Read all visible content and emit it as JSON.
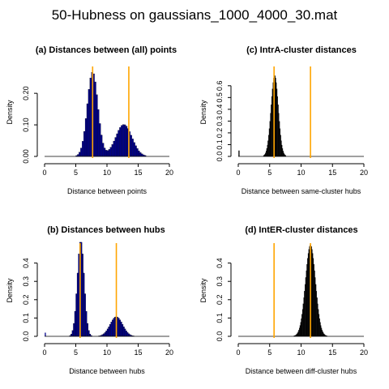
{
  "title": "50-Hubness on gaussians_1000_4000_30.mat",
  "colors": {
    "navy": "#00008b",
    "black": "#000000",
    "orange": "#ffa500"
  },
  "chart_data": [
    {
      "type": "bar",
      "title": "(a) Distances between (all) points",
      "xlabel": "Distance between points",
      "ylabel": "Density",
      "xlim": [
        0,
        20
      ],
      "ylim": [
        0,
        0.28
      ],
      "xticks": [
        "0",
        "5",
        "10",
        "15",
        "20"
      ],
      "yticks": [
        "0.00",
        "0.10",
        "0.20"
      ],
      "ytick_values": [
        0,
        0.1,
        0.2
      ],
      "bar_color": "#00008b",
      "vlines": [
        7.7,
        13.5
      ],
      "vline_color": "#ffa500",
      "components": [
        {
          "mean": 7.7,
          "sd": 0.85,
          "weight": 0.57
        },
        {
          "mean": 12.7,
          "sd": 1.3,
          "weight": 0.33
        }
      ],
      "bin_width": 0.25,
      "range": [
        0.5,
        17
      ]
    },
    {
      "type": "bar",
      "title": "(c) IntrA-cluster distances",
      "xlabel": "Distance between same-cluster hubs",
      "ylabel": "Density",
      "xlim": [
        0,
        20
      ],
      "ylim": [
        0,
        0.75
      ],
      "xticks": [
        "0",
        "5",
        "10",
        "15",
        "20"
      ],
      "yticks": [
        "0.0",
        "0.1",
        "0.2",
        "0.3",
        "0.4",
        "0.5",
        "0.6"
      ],
      "ytick_values": [
        0,
        0.1,
        0.2,
        0.3,
        0.4,
        0.5,
        0.6
      ],
      "bar_color": "#000000",
      "vlines": [
        5.7,
        11.5
      ],
      "vline_color": "#ffa500",
      "components": [
        {
          "mean": 5.8,
          "sd": 0.58,
          "weight": 1.0
        }
      ],
      "spike": {
        "x": 0.1,
        "value": 0.05
      },
      "bin_width": 0.1,
      "range": [
        4.0,
        7.6
      ]
    },
    {
      "type": "bar",
      "title": "(b) Distances between hubs",
      "xlabel": "Distance between hubs",
      "ylabel": "Density",
      "xlim": [
        0,
        20
      ],
      "ylim": [
        0,
        0.5
      ],
      "xticks": [
        "0",
        "5",
        "10",
        "15",
        "20"
      ],
      "yticks": [
        "0.0",
        "0.1",
        "0.2",
        "0.3",
        "0.4"
      ],
      "ytick_values": [
        0,
        0.1,
        0.2,
        0.3,
        0.4
      ],
      "bar_color": "#00008b",
      "vlines": [
        5.7,
        11.5
      ],
      "vline_color": "#ffa500",
      "components": [
        {
          "mean": 5.8,
          "sd": 0.55,
          "weight": 0.72
        },
        {
          "mean": 11.5,
          "sd": 1.0,
          "weight": 0.27
        }
      ],
      "spike": {
        "x": 0.1,
        "value": 0.02
      },
      "bin_width": 0.2,
      "range": [
        4.0,
        14.6
      ]
    },
    {
      "type": "bar",
      "title": "(d) IntER-cluster distances",
      "xlabel": "Distance between diff-cluster hubs",
      "ylabel": "Density",
      "xlim": [
        0,
        20
      ],
      "ylim": [
        0,
        0.5
      ],
      "xticks": [
        "0",
        "5",
        "10",
        "15",
        "20"
      ],
      "yticks": [
        "0.0",
        "0.1",
        "0.2",
        "0.3",
        "0.4"
      ],
      "ytick_values": [
        0,
        0.1,
        0.2,
        0.3,
        0.4
      ],
      "bar_color": "#000000",
      "vlines": [
        5.7,
        11.5
      ],
      "vline_color": "#ffa500",
      "components": [
        {
          "mean": 11.5,
          "sd": 0.8,
          "weight": 1.0
        }
      ],
      "bin_width": 0.1,
      "range": [
        8.5,
        14.2
      ]
    }
  ]
}
